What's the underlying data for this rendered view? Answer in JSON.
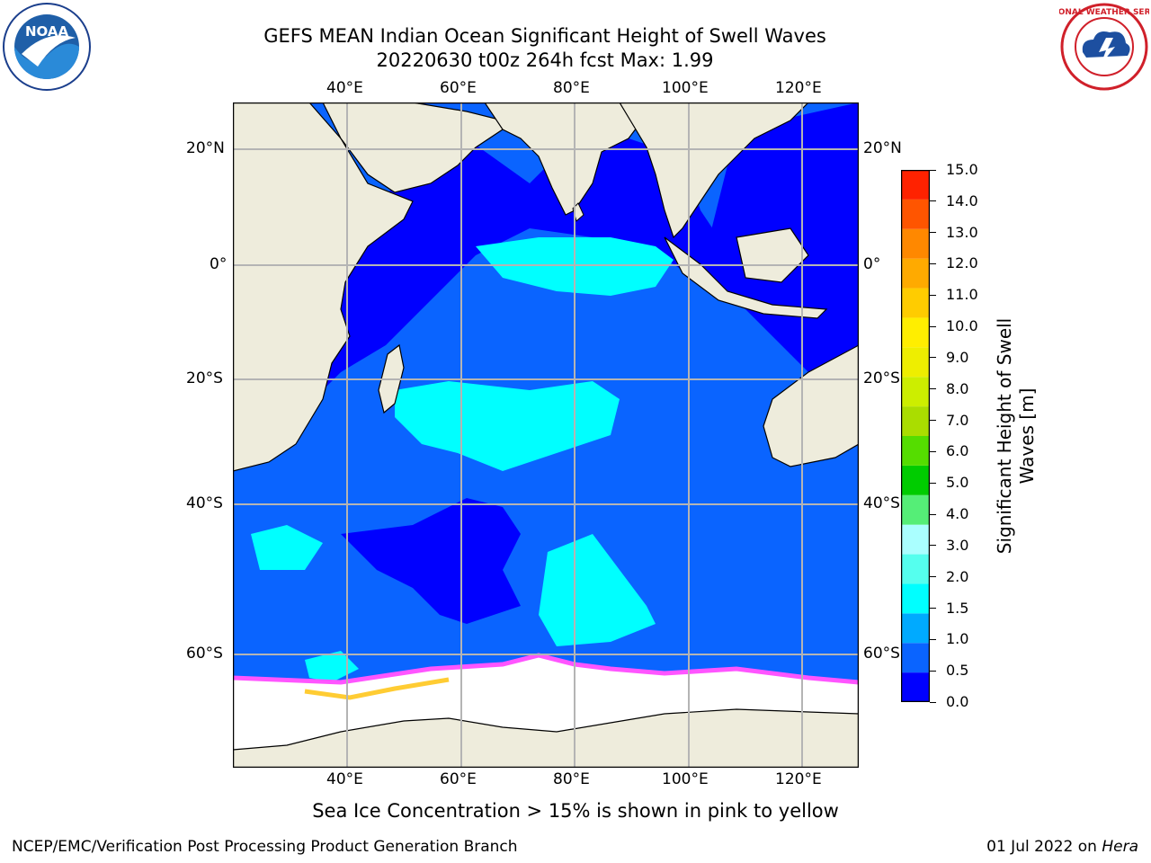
{
  "title": {
    "line1": "GEFS MEAN Indian Ocean Significant Height of Swell Waves",
    "line2": "20220630 t00z 264h fcst   Max: 1.99"
  },
  "axes": {
    "lon_labels_top": [
      "40°E",
      "60°E",
      "80°E",
      "100°E",
      "120°E"
    ],
    "lon_labels_bottom": [
      "40°E",
      "60°E",
      "80°E",
      "100°E",
      "120°E"
    ],
    "lat_labels_left": [
      "20°N",
      "0°",
      "20°S",
      "40°S",
      "60°S"
    ],
    "lat_labels_right": [
      "20°N",
      "0°",
      "20°S",
      "40°S",
      "60°S"
    ],
    "lon_range": [
      20,
      130
    ],
    "lat_range": [
      -73,
      27
    ]
  },
  "colorbar": {
    "title_line1": "Significant Height of Swell",
    "title_line2": "Waves [m]",
    "tick_labels": [
      "0.0",
      "0.5",
      "1.0",
      "1.5",
      "2.0",
      "3.0",
      "4.0",
      "5.0",
      "6.0",
      "7.0",
      "8.0",
      "9.0",
      "10.0",
      "11.0",
      "12.0",
      "13.0",
      "14.0",
      "15.0"
    ],
    "colors": [
      "#0000ff",
      "#0a64ff",
      "#00aaff",
      "#00ffff",
      "#55ffee",
      "#aaffff",
      "#55ee77",
      "#00cc00",
      "#55dd00",
      "#aadd00",
      "#ccee00",
      "#eeee00",
      "#ffee00",
      "#ffcc00",
      "#ffaa00",
      "#ff8800",
      "#ff5500",
      "#ff2200"
    ]
  },
  "map_colors": {
    "land": "#eeecdc",
    "ocean_deep_blue": "#0000ff",
    "ocean_blue": "#0a64ff",
    "ocean_medium": "#0078ff",
    "cyan": "#00ffff",
    "ice": "#ffffff",
    "ice_edge_pink": "#ff55ff",
    "ice_edge_yellow": "#ffcc33",
    "grid": "#b4b4b4"
  },
  "logos": {
    "left": "noaa-logo",
    "left_text": "NOAA",
    "right": "national-weather-service-logo",
    "right_text": "NATIONAL WEATHER SERVICE"
  },
  "footer": {
    "note": "Sea Ice Concentration > 15% is shown in pink to yellow",
    "credit": "NCEP/EMC/Verification Post Processing Product Generation Branch",
    "date": "01 Jul 2022 on ",
    "host": "Hera"
  }
}
